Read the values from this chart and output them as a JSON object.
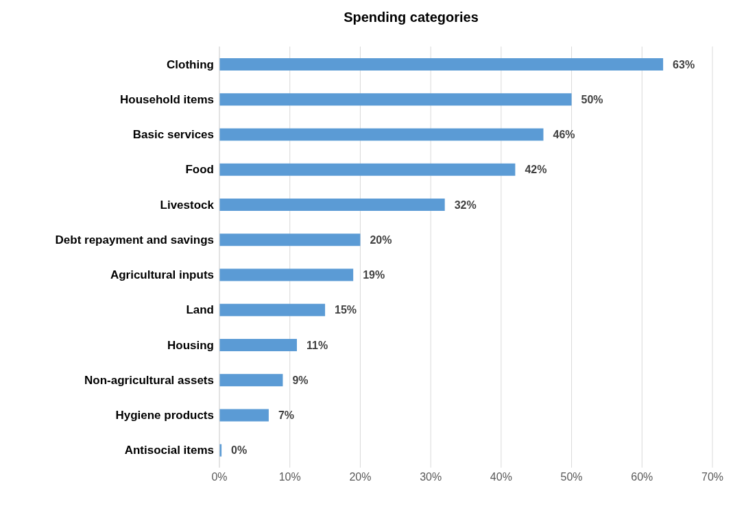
{
  "chart_data": {
    "type": "bar",
    "orientation": "horizontal",
    "title": "Spending categories",
    "categories": [
      "Clothing",
      "Household items",
      "Basic services",
      "Food",
      "Livestock",
      "Debt repayment and savings",
      "Agricultural inputs",
      "Land",
      "Housing",
      "Non-agricultural assets",
      "Hygiene products",
      "Antisocial items"
    ],
    "values": [
      63,
      50,
      46,
      42,
      32,
      20,
      19,
      15,
      11,
      9,
      7,
      0.3
    ],
    "value_labels": [
      "63%",
      "50%",
      "46%",
      "42%",
      "32%",
      "20%",
      "19%",
      "15%",
      "11%",
      "9%",
      "7%",
      "0%"
    ],
    "color": "#5b9bd5",
    "xlim": [
      0,
      70
    ],
    "xticks": [
      {
        "value": 0,
        "label": "0%"
      },
      {
        "value": 10,
        "label": "10%"
      },
      {
        "value": 20,
        "label": "20%"
      },
      {
        "value": 30,
        "label": "30%"
      },
      {
        "value": 40,
        "label": "40%"
      },
      {
        "value": 50,
        "label": "50%"
      },
      {
        "value": 60,
        "label": "60%"
      },
      {
        "value": 70,
        "label": "70%"
      }
    ],
    "grid": "x"
  }
}
